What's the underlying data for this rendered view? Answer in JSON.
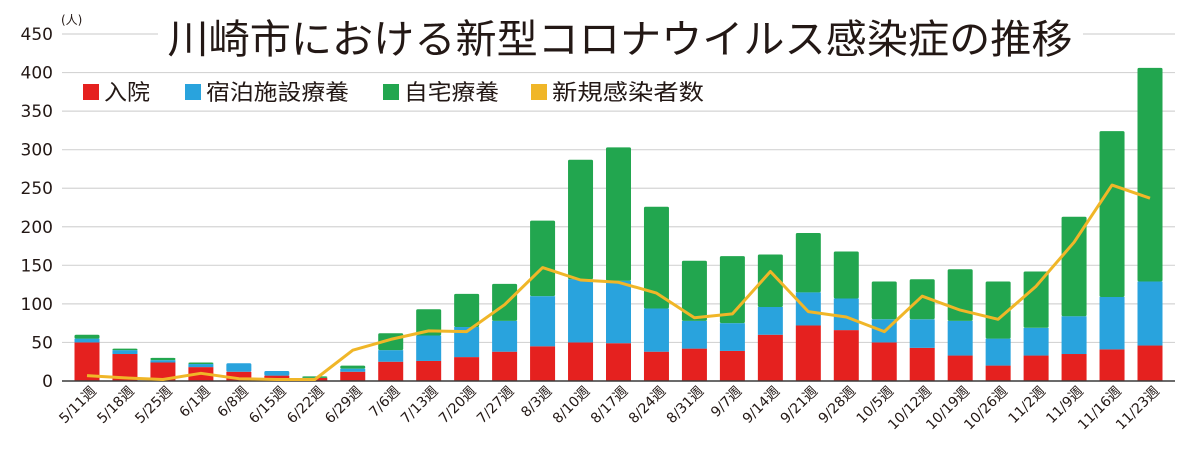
{
  "chart_data": {
    "type": "bar",
    "stacked": true,
    "title": "川崎市における新型コロナウイルス感染症の推移",
    "ylabel": "(人)",
    "xlabel": "",
    "ylim": [
      0,
      450
    ],
    "yticks": [
      0,
      50,
      100,
      150,
      200,
      250,
      300,
      350,
      400,
      450
    ],
    "grid": true,
    "legend_position": "top-left",
    "categories": [
      "5/11週",
      "5/18週",
      "5/25週",
      "6/1週",
      "6/8週",
      "6/15週",
      "6/22週",
      "6/29週",
      "7/6週",
      "7/13週",
      "7/20週",
      "7/27週",
      "8/3週",
      "8/10週",
      "8/17週",
      "8/24週",
      "8/31週",
      "9/7週",
      "9/14週",
      "9/21週",
      "9/28週",
      "10/5週",
      "10/12週",
      "10/19週",
      "10/26週",
      "11/2週",
      "11/9週",
      "11/16週",
      "11/23週"
    ],
    "series": [
      {
        "name": "入院",
        "type": "bar",
        "color": "#E5211F",
        "values": [
          50,
          35,
          24,
          18,
          12,
          7,
          4,
          12,
          25,
          26,
          31,
          38,
          45,
          50,
          49,
          38,
          42,
          39,
          60,
          72,
          66,
          50,
          43,
          33,
          20,
          33,
          35,
          41,
          46
        ]
      },
      {
        "name": "宿泊施設療養",
        "type": "bar",
        "color": "#29A3DD",
        "values": [
          5,
          5,
          3,
          4,
          11,
          6,
          0,
          4,
          15,
          33,
          39,
          40,
          65,
          82,
          81,
          56,
          36,
          36,
          36,
          43,
          41,
          30,
          37,
          45,
          35,
          36,
          49,
          68,
          83
        ]
      },
      {
        "name": "自宅療養",
        "type": "bar",
        "color": "#22A64F",
        "values": [
          5,
          2,
          3,
          2,
          0,
          0,
          2,
          4,
          22,
          34,
          43,
          48,
          98,
          155,
          173,
          132,
          78,
          87,
          68,
          77,
          61,
          49,
          52,
          67,
          74,
          73,
          129,
          215,
          277
        ]
      },
      {
        "name": "新規感染者数",
        "type": "line",
        "color": "#F0B628",
        "values": [
          7,
          4,
          2,
          10,
          3,
          2,
          2,
          40,
          54,
          65,
          64,
          99,
          147,
          131,
          128,
          114,
          82,
          87,
          142,
          90,
          83,
          64,
          110,
          92,
          80,
          123,
          180,
          254,
          237
        ]
      }
    ]
  }
}
